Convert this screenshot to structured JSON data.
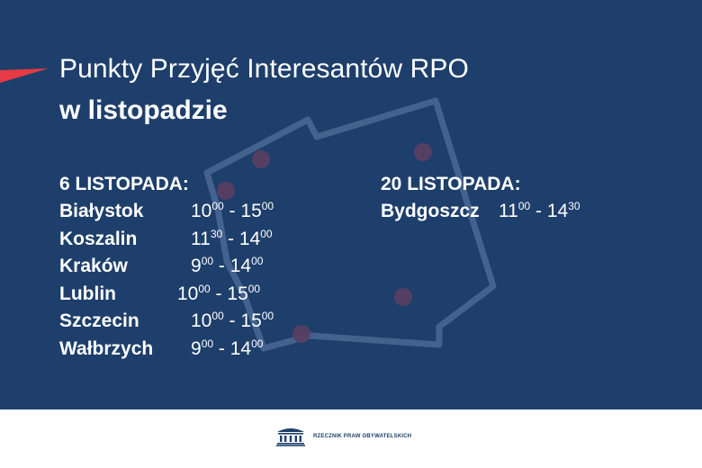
{
  "header": {
    "title": "Punkty Przyjęć Interesantów RPO",
    "subtitle": "w listopadzie"
  },
  "left_column": {
    "heading": "6 LISTOPADA:",
    "rows": [
      {
        "city": "Białystok",
        "start_h": "10",
        "start_m": "00",
        "end_h": "15",
        "end_m": "00"
      },
      {
        "city": "Koszalin",
        "start_h": "11",
        "start_m": "30",
        "end_h": "14",
        "end_m": "00"
      },
      {
        "city": "Kraków",
        "start_h": "9",
        "start_m": "00",
        "end_h": "14",
        "end_m": "00"
      },
      {
        "city": "Lublin",
        "start_h": "10",
        "start_m": "00",
        "end_h": "15",
        "end_m": "00"
      },
      {
        "city": "Szczecin",
        "start_h": "10",
        "start_m": "00",
        "end_h": "15",
        "end_m": "00"
      },
      {
        "city": "Wałbrzych",
        "start_h": "9",
        "start_m": "00",
        "end_h": "14",
        "end_m": "00"
      }
    ]
  },
  "right_column": {
    "heading": "20 LISTOPADA:",
    "rows": [
      {
        "city": "Bydgoszcz",
        "start_h": "11",
        "start_m": "00",
        "end_h": "14",
        "end_m": "30"
      }
    ]
  },
  "separator": " - ",
  "footer": {
    "logo_text": "RZECZNIK PRAW OBYWATELSKICH"
  },
  "colors": {
    "background": "#1e3f6b",
    "accent": "#e63a46",
    "text": "#ffffff"
  }
}
